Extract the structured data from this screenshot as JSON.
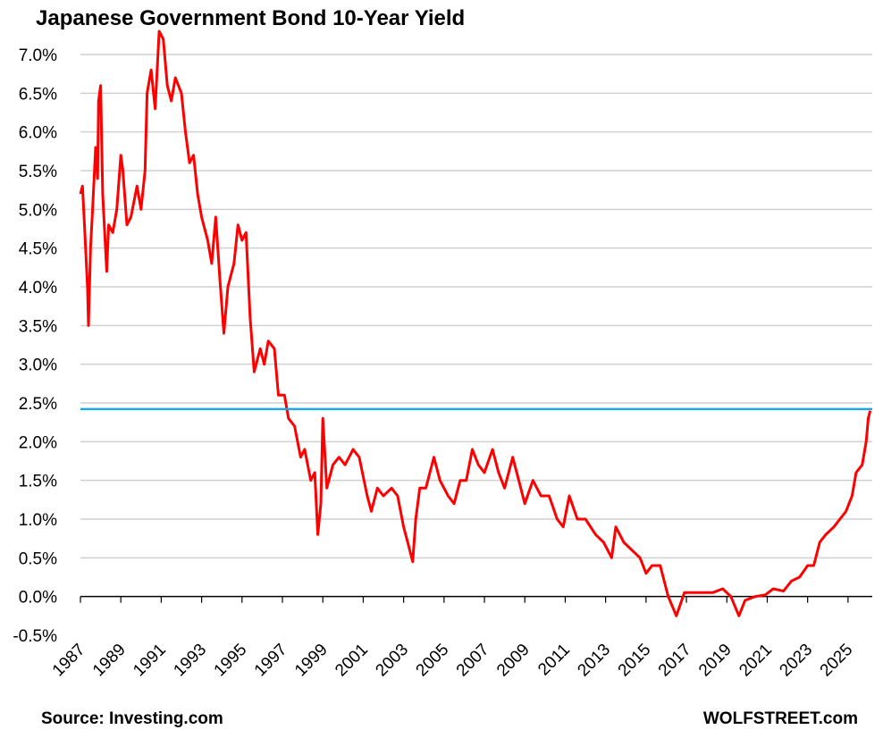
{
  "chart_data": {
    "type": "line",
    "title": "Japanese Government Bond 10-Year Yield",
    "source": "Source: Investing.com",
    "brand": "WOLFSTREET.com",
    "xlim": [
      1987,
      2026.2
    ],
    "xticks": [
      1987,
      1989,
      1991,
      1993,
      1995,
      1997,
      1999,
      2001,
      2003,
      2005,
      2007,
      2009,
      2011,
      2013,
      2015,
      2017,
      2019,
      2021,
      2023,
      2025
    ],
    "ylim": [
      -0.5,
      7.3
    ],
    "yticks": [
      {
        "value": -0.5,
        "label": "-0.5%"
      },
      {
        "value": 0,
        "label": "0.0%"
      },
      {
        "value": 0.5,
        "label": "0.5%"
      },
      {
        "value": 1,
        "label": "1.0%"
      },
      {
        "value": 1.5,
        "label": "1.5%"
      },
      {
        "value": 2,
        "label": "2.0%"
      },
      {
        "value": 2.5,
        "label": "2.5%"
      },
      {
        "value": 3,
        "label": "3.0%"
      },
      {
        "value": 3.5,
        "label": "3.5%"
      },
      {
        "value": 4,
        "label": "4.0%"
      },
      {
        "value": 4.5,
        "label": "4.5%"
      },
      {
        "value": 5,
        "label": "5.0%"
      },
      {
        "value": 5.5,
        "label": "5.5%"
      },
      {
        "value": 6,
        "label": "6.0%"
      },
      {
        "value": 6.5,
        "label": "6.5%"
      },
      {
        "value": 7,
        "label": "7.0%"
      }
    ],
    "grid": true,
    "hline": {
      "value": 2.42,
      "color": "#1ea7e1"
    },
    "series": [
      {
        "color": "#ff0000",
        "x": [
          1987.0,
          1987.1,
          1987.2,
          1987.35,
          1987.4,
          1987.5,
          1987.6,
          1987.75,
          1987.85,
          1987.9,
          1988.0,
          1988.1,
          1988.3,
          1988.4,
          1988.6,
          1988.8,
          1989.0,
          1989.1,
          1989.3,
          1989.5,
          1989.8,
          1990.0,
          1990.2,
          1990.3,
          1990.5,
          1990.7,
          1990.9,
          1991.1,
          1991.3,
          1991.5,
          1991.7,
          1992.0,
          1992.2,
          1992.4,
          1992.6,
          1992.8,
          1993.0,
          1993.3,
          1993.5,
          1993.7,
          1993.9,
          1994.1,
          1994.3,
          1994.6,
          1994.8,
          1995.0,
          1995.2,
          1995.4,
          1995.6,
          1995.9,
          1996.1,
          1996.3,
          1996.6,
          1996.8,
          1997.1,
          1997.3,
          1997.6,
          1997.9,
          1998.1,
          1998.4,
          1998.6,
          1998.75,
          1998.9,
          1999.0,
          1999.2,
          1999.5,
          1999.8,
          2000.1,
          2000.5,
          2000.8,
          2001.2,
          2001.4,
          2001.7,
          2002.0,
          2002.4,
          2002.7,
          2003.0,
          2003.2,
          2003.45,
          2003.6,
          2003.8,
          2004.1,
          2004.5,
          2004.8,
          2005.2,
          2005.5,
          2005.8,
          2006.1,
          2006.4,
          2006.7,
          2007.0,
          2007.4,
          2007.7,
          2008.0,
          2008.4,
          2008.7,
          2009.0,
          2009.4,
          2009.8,
          2010.2,
          2010.6,
          2010.9,
          2011.2,
          2011.6,
          2012.0,
          2012.5,
          2012.9,
          2013.3,
          2013.5,
          2013.9,
          2014.3,
          2014.7,
          2015.0,
          2015.3,
          2015.7,
          2015.9,
          2016.1,
          2016.5,
          2016.9,
          2017.3,
          2017.8,
          2018.3,
          2018.8,
          2019.2,
          2019.6,
          2019.9,
          2020.4,
          2020.9,
          2021.3,
          2021.8,
          2022.2,
          2022.6,
          2023.0,
          2023.3,
          2023.6,
          2023.9,
          2024.3,
          2024.6,
          2024.9,
          2025.2,
          2025.4,
          2025.7,
          2025.9,
          2026.0,
          2026.1
        ],
        "values": [
          5.2,
          5.3,
          4.8,
          4.0,
          3.5,
          4.5,
          5.0,
          5.8,
          5.4,
          6.4,
          6.6,
          5.2,
          4.2,
          4.8,
          4.7,
          5.0,
          5.7,
          5.5,
          4.8,
          4.9,
          5.3,
          5.0,
          5.5,
          6.5,
          6.8,
          6.3,
          7.3,
          7.2,
          6.6,
          6.4,
          6.7,
          6.5,
          6.0,
          5.6,
          5.7,
          5.2,
          4.9,
          4.6,
          4.3,
          4.9,
          4.1,
          3.4,
          4.0,
          4.3,
          4.8,
          4.6,
          4.7,
          3.6,
          2.9,
          3.2,
          3.0,
          3.3,
          3.2,
          2.6,
          2.6,
          2.3,
          2.2,
          1.8,
          1.9,
          1.5,
          1.6,
          0.8,
          1.2,
          2.3,
          1.4,
          1.7,
          1.8,
          1.7,
          1.9,
          1.8,
          1.3,
          1.1,
          1.4,
          1.3,
          1.4,
          1.3,
          0.9,
          0.7,
          0.45,
          1.0,
          1.4,
          1.4,
          1.8,
          1.5,
          1.3,
          1.2,
          1.5,
          1.5,
          1.9,
          1.7,
          1.6,
          1.9,
          1.6,
          1.4,
          1.8,
          1.5,
          1.2,
          1.5,
          1.3,
          1.3,
          1.0,
          0.9,
          1.3,
          1.0,
          1.0,
          0.8,
          0.7,
          0.5,
          0.9,
          0.7,
          0.6,
          0.5,
          0.3,
          0.4,
          0.4,
          0.2,
          0.0,
          -0.25,
          0.05,
          0.05,
          0.05,
          0.05,
          0.1,
          0.0,
          -0.25,
          -0.05,
          0.0,
          0.02,
          0.1,
          0.07,
          0.2,
          0.25,
          0.4,
          0.4,
          0.7,
          0.8,
          0.9,
          1.0,
          1.1,
          1.3,
          1.6,
          1.7,
          2.0,
          2.3,
          2.4
        ]
      }
    ]
  }
}
